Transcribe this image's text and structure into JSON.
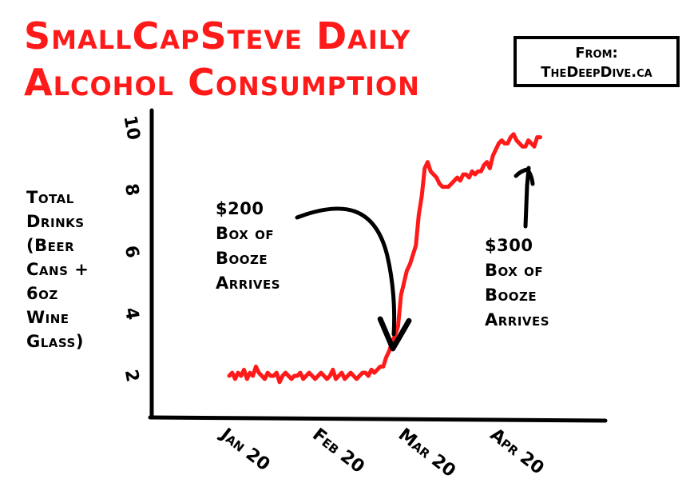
{
  "title": {
    "line1": "SmallCapSteve Daily",
    "line2": "Alcohol Consumption"
  },
  "source": {
    "line1": "From:",
    "line2": "TheDeepDive.ca"
  },
  "annotations": [
    {
      "lines": [
        "$200",
        "Box of",
        "Booze",
        "Arrives"
      ]
    },
    {
      "lines": [
        "$300",
        "Box of",
        "Booze",
        "Arrives"
      ]
    }
  ],
  "colors": {
    "title": "#ff1a1a",
    "series": "#ff1a1a",
    "axis": "#000000",
    "arrow": "#000000"
  },
  "chart_data": {
    "type": "line",
    "title": "SmallCapSteve Daily Alcohol Consumption",
    "ylabel_lines": [
      "Total",
      "Drinks",
      "(Beer",
      "Cans +",
      "6oz",
      "Wine",
      "Glass)"
    ],
    "ylabel": "Total Drinks (Beer Cans + 6oz Wine Glass)",
    "xlabel": "",
    "y_ticks": [
      "2",
      "4",
      "6",
      "8",
      "10"
    ],
    "y_tick_values": [
      2,
      4,
      6,
      8,
      10
    ],
    "x_ticks": [
      "Jan 20",
      "Feb 20",
      "Mar 20",
      "Apr 20"
    ],
    "x_tick_values": [
      0,
      31,
      60,
      91
    ],
    "xlim": [
      0,
      110
    ],
    "ylim": [
      2,
      10
    ],
    "grid": false,
    "legend": "none",
    "series": [
      {
        "x": [
          0,
          1,
          2,
          3,
          4,
          5,
          6,
          7,
          8,
          9,
          10,
          11,
          12,
          13,
          14,
          15,
          16,
          17,
          18,
          19,
          20,
          21,
          22,
          23,
          24,
          25,
          26,
          27,
          28,
          29,
          30,
          31,
          32,
          33,
          34,
          35,
          36,
          37,
          38,
          39,
          40,
          41,
          42,
          43,
          44,
          45,
          46,
          47,
          48,
          49,
          50,
          51,
          52,
          53,
          54,
          55,
          56,
          57,
          58,
          59,
          60,
          61,
          62,
          63,
          64,
          65,
          66,
          67,
          68,
          69,
          70,
          71,
          72,
          73,
          74,
          75,
          76,
          77,
          78,
          79,
          80,
          81,
          82,
          83,
          84,
          85,
          86,
          87,
          88,
          89,
          90,
          91,
          92,
          93,
          94,
          95,
          96,
          97,
          98,
          99,
          100,
          101,
          102,
          103,
          104,
          105
        ],
        "y": [
          2.0,
          2.1,
          1.9,
          2.1,
          2.0,
          2.2,
          1.9,
          2.1,
          2.0,
          2.3,
          2.1,
          2.0,
          1.9,
          2.1,
          2.0,
          2.0,
          2.1,
          1.8,
          2.0,
          2.1,
          2.0,
          1.9,
          2.0,
          2.0,
          2.1,
          1.9,
          2.0,
          2.1,
          2.0,
          1.9,
          2.0,
          2.1,
          2.0,
          1.9,
          2.0,
          2.2,
          1.9,
          2.0,
          2.1,
          1.9,
          2.0,
          2.1,
          2.0,
          1.9,
          2.0,
          2.1,
          2.1,
          2.0,
          2.2,
          2.1,
          2.2,
          2.3,
          2.3,
          2.6,
          2.8,
          3.1,
          3.3,
          3.6,
          4.6,
          5.0,
          5.4,
          5.6,
          5.9,
          6.2,
          7.2,
          7.8,
          8.7,
          8.9,
          8.6,
          8.5,
          8.4,
          8.2,
          8.1,
          8.1,
          8.1,
          8.2,
          8.3,
          8.4,
          8.3,
          8.5,
          8.5,
          8.4,
          8.6,
          8.5,
          8.6,
          8.6,
          8.8,
          8.9,
          8.7,
          9.1,
          9.3,
          9.5,
          9.6,
          9.5,
          9.5,
          9.7,
          9.8,
          9.6,
          9.5,
          9.4,
          9.4,
          9.6,
          9.5,
          9.4,
          9.7,
          9.7
        ]
      }
    ]
  }
}
